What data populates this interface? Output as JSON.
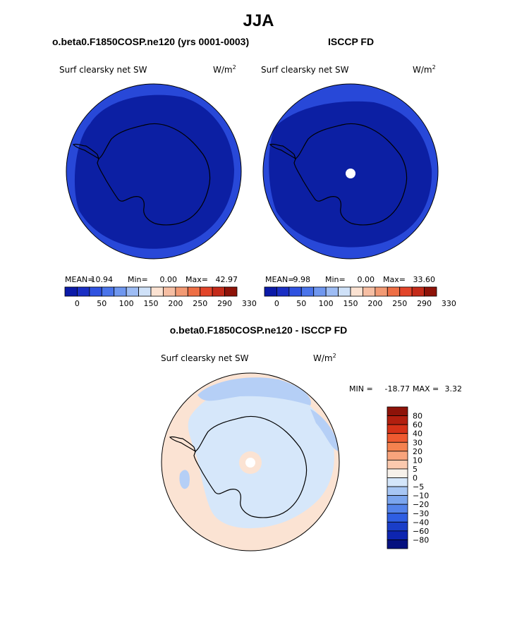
{
  "title": "JJA",
  "chart_data": [
    {
      "type": "heatmap",
      "projection": "south-polar-stereographic",
      "title": "o.beta0.F1850COSP.ne120 (yrs 0001-0003)",
      "variable": "Surf clearsky net SW",
      "units": "W/m",
      "units_exp": "2",
      "stats": {
        "mean_label": "MEAN=",
        "mean": "10.94",
        "min_label": "Min=",
        "min": "0.00",
        "max_label": "Max=",
        "max": "42.97"
      },
      "colorbar_ticks": [
        "0",
        "50",
        "100",
        "150",
        "200",
        "250",
        "290",
        "330"
      ],
      "colorbar_colors": [
        "#0b1aa8",
        "#1a2fc4",
        "#2f52e0",
        "#4a74ea",
        "#6f97ef",
        "#9dbcf4",
        "#cfe1f8",
        "#fbe2d2",
        "#f6bea3",
        "#f29a74",
        "#ee6f45",
        "#e2452a",
        "#c42b1a",
        "#8e1309"
      ],
      "field": {
        "ocean_band": "#2848d8",
        "interior": "#0c1fa3"
      }
    },
    {
      "type": "heatmap",
      "projection": "south-polar-stereographic",
      "title": "ISCCP FD",
      "variable": "Surf clearsky net SW",
      "units": "W/m",
      "units_exp": "2",
      "stats": {
        "mean_label": "MEAN=",
        "mean": "9.98",
        "min_label": "Min=",
        "min": "0.00",
        "max_label": "Max=",
        "max": "33.60"
      },
      "colorbar_ticks": [
        "0",
        "50",
        "100",
        "150",
        "200",
        "250",
        "290",
        "330"
      ],
      "colorbar_colors": [
        "#0b1aa8",
        "#1a2fc4",
        "#2f52e0",
        "#4a74ea",
        "#6f97ef",
        "#9dbcf4",
        "#cfe1f8",
        "#fbe2d2",
        "#f6bea3",
        "#f29a74",
        "#ee6f45",
        "#e2452a",
        "#c42b1a",
        "#8e1309"
      ],
      "field": {
        "ocean_band": "#2848d8",
        "interior": "#0c1fa3",
        "missing_pole": "#ffffff"
      }
    },
    {
      "type": "heatmap",
      "projection": "south-polar-stereographic",
      "title": "o.beta0.F1850COSP.ne120 - ISCCP FD",
      "variable": "Surf clearsky net SW",
      "units": "W/m",
      "units_exp": "2",
      "stats": {
        "min_label": "MIN =",
        "min": "-18.77",
        "max_label": "MAX =",
        "max": "3.32"
      },
      "colorbar_ticks": [
        "80",
        "60",
        "40",
        "30",
        "20",
        "10",
        "5",
        "0",
        "−5",
        "−10",
        "−20",
        "−30",
        "−40",
        "−60",
        "−80"
      ],
      "colorbar_colors": [
        "#8e1309",
        "#b21f0f",
        "#d63218",
        "#ef5a30",
        "#f5824f",
        "#f8a47c",
        "#fbc9ae",
        "#f7f1ea",
        "#d4e6fa",
        "#a7c6f4",
        "#7ba5ee",
        "#5483ea",
        "#2f5ee2",
        "#1a3ec8",
        "#0d25b0",
        "#06117f"
      ],
      "field": {
        "background": "#fbe3d3",
        "main": "#d6e7fa",
        "patches": "#b5cff6",
        "pole_ring": "#fbe3d3"
      }
    }
  ]
}
